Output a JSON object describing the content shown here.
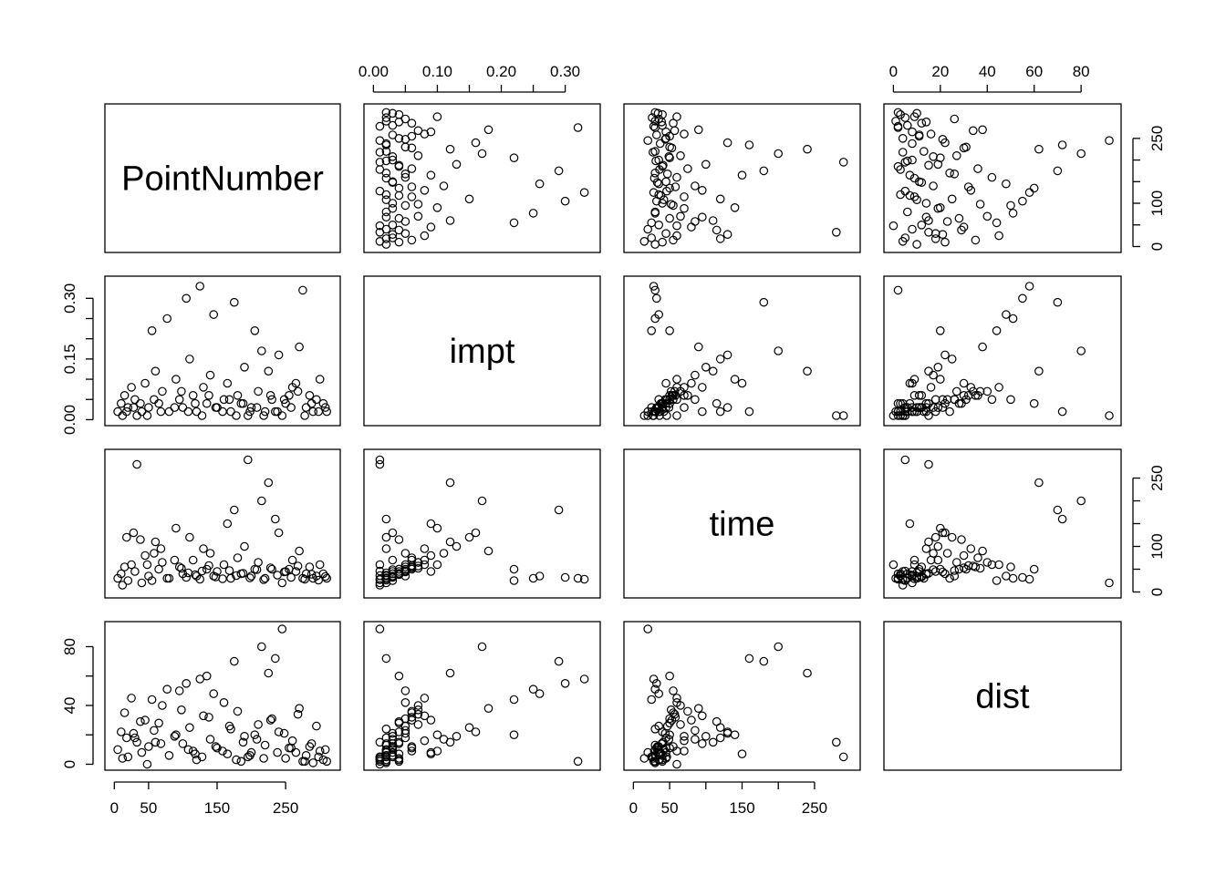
{
  "chart_data": {
    "type": "scatter",
    "variables": [
      {
        "name": "PointNumber",
        "range": [
          0,
          316
        ],
        "ticks": [
          0,
          50,
          150,
          250
        ],
        "tick_labels": [
          "0",
          "50",
          "150",
          "250"
        ],
        "right_ticks": [
          0,
          50,
          100,
          150,
          200,
          250
        ],
        "right_tick_labels": [
          "0",
          "",
          "100",
          "",
          "",
          "250"
        ]
      },
      {
        "name": "impt",
        "range": [
          0,
          0.34
        ],
        "ticks": [
          0,
          0.05,
          0.1,
          0.15,
          0.2,
          0.25,
          0.3
        ],
        "tick_labels": [
          "0.00",
          "",
          "0.10",
          "",
          "0.20",
          "",
          "0.30"
        ],
        "left_ticks": [
          0,
          0.05,
          0.1,
          0.15,
          0.2,
          0.25,
          0.3
        ],
        "left_tick_labels": [
          "0.00",
          "",
          "",
          "0.15",
          "",
          "",
          "0.30"
        ]
      },
      {
        "name": "time",
        "range": [
          0,
          300
        ],
        "ticks": [
          0,
          50,
          100,
          150,
          200,
          250
        ],
        "tick_labels": [
          "0",
          "50",
          "",
          "150",
          "",
          "250"
        ],
        "right_ticks": [
          0,
          50,
          100,
          150,
          200,
          250
        ],
        "right_tick_labels": [
          "0",
          "",
          "100",
          "",
          "",
          "250"
        ]
      },
      {
        "name": "dist",
        "range": [
          0,
          93
        ],
        "ticks": [
          0,
          20,
          40,
          60,
          80
        ],
        "tick_labels": [
          "0",
          "20",
          "40",
          "60",
          "80"
        ],
        "left_ticks": [
          0,
          20,
          40,
          60,
          80
        ],
        "left_tick_labels": [
          "0",
          "",
          "40",
          "",
          "80"
        ]
      }
    ],
    "points": [
      [
        5,
        0.02,
        30,
        10
      ],
      [
        10,
        0.04,
        40,
        22
      ],
      [
        15,
        0.06,
        55,
        35
      ],
      [
        20,
        0.03,
        25,
        5
      ],
      [
        25,
        0.08,
        60,
        45
      ],
      [
        30,
        0.05,
        45,
        18
      ],
      [
        40,
        0.02,
        20,
        8
      ],
      [
        45,
        0.09,
        80,
        30
      ],
      [
        50,
        0.03,
        35,
        12
      ],
      [
        60,
        0.12,
        110,
        15
      ],
      [
        65,
        0.04,
        50,
        28
      ],
      [
        70,
        0.07,
        65,
        40
      ],
      [
        80,
        0.02,
        30,
        6
      ],
      [
        90,
        0.1,
        140,
        20
      ],
      [
        95,
        0.05,
        55,
        50
      ],
      [
        100,
        0.03,
        40,
        14
      ],
      [
        110,
        0.15,
        120,
        25
      ],
      [
        115,
        0.06,
        70,
        9
      ],
      [
        120,
        0.02,
        35,
        3
      ],
      [
        130,
        0.08,
        95,
        33
      ],
      [
        135,
        0.04,
        50,
        60
      ],
      [
        140,
        0.11,
        85,
        17
      ],
      [
        150,
        0.03,
        45,
        11
      ],
      [
        160,
        0.05,
        60,
        42
      ],
      [
        165,
        0.09,
        150,
        7
      ],
      [
        170,
        0.02,
        30,
        24
      ],
      [
        180,
        0.06,
        75,
        36
      ],
      [
        185,
        0.04,
        40,
        2
      ],
      [
        190,
        0.13,
        100,
        19
      ],
      [
        200,
        0.03,
        35,
        8
      ],
      [
        210,
        0.07,
        65,
        27
      ],
      [
        220,
        0.02,
        30,
        13
      ],
      [
        230,
        0.05,
        50,
        31
      ],
      [
        240,
        0.16,
        130,
        22
      ],
      [
        250,
        0.04,
        45,
        4
      ],
      [
        260,
        0.08,
        70,
        16
      ],
      [
        270,
        0.18,
        90,
        38
      ],
      [
        280,
        0.03,
        40,
        6
      ],
      [
        285,
        0.06,
        55,
        12
      ],
      [
        290,
        0.02,
        30,
        1
      ],
      [
        295,
        0.05,
        35,
        26
      ],
      [
        300,
        0.1,
        60,
        9
      ],
      [
        305,
        0.04,
        40,
        3
      ],
      [
        310,
        0.02,
        30,
        2
      ],
      [
        12,
        0.01,
        15,
        4
      ],
      [
        33,
        0.01,
        280,
        15
      ],
      [
        55,
        0.22,
        25,
        44
      ],
      [
        77,
        0.25,
        30,
        51
      ],
      [
        105,
        0.3,
        32,
        55
      ],
      [
        125,
        0.33,
        28,
        58
      ],
      [
        145,
        0.26,
        35,
        48
      ],
      [
        175,
        0.29,
        180,
        70
      ],
      [
        195,
        0.01,
        290,
        5
      ],
      [
        205,
        0.22,
        50,
        20
      ],
      [
        215,
        0.17,
        200,
        80
      ],
      [
        225,
        0.12,
        240,
        62
      ],
      [
        235,
        0.02,
        160,
        72
      ],
      [
        245,
        0.01,
        20,
        92
      ],
      [
        255,
        0.06,
        50,
        11
      ],
      [
        265,
        0.09,
        45,
        8
      ],
      [
        275,
        0.32,
        30,
        2
      ],
      [
        18,
        0.02,
        120,
        18
      ],
      [
        28,
        0.03,
        130,
        21
      ],
      [
        38,
        0.04,
        115,
        29
      ],
      [
        48,
        0.01,
        60,
        0
      ],
      [
        58,
        0.05,
        85,
        23
      ],
      [
        68,
        0.02,
        95,
        14
      ],
      [
        88,
        0.03,
        70,
        19
      ],
      [
        98,
        0.07,
        52,
        37
      ],
      [
        108,
        0.02,
        42,
        10
      ],
      [
        118,
        0.04,
        38,
        7
      ],
      [
        128,
        0.01,
        46,
        5
      ],
      [
        138,
        0.06,
        58,
        32
      ],
      [
        148,
        0.03,
        33,
        12
      ],
      [
        158,
        0.02,
        29,
        9
      ],
      [
        168,
        0.05,
        47,
        26
      ],
      [
        178,
        0.01,
        36,
        3
      ],
      [
        188,
        0.04,
        41,
        15
      ],
      [
        198,
        0.02,
        31,
        6
      ],
      [
        208,
        0.03,
        49,
        17
      ],
      [
        218,
        0.01,
        27,
        4
      ],
      [
        228,
        0.06,
        53,
        30
      ],
      [
        238,
        0.02,
        37,
        8
      ],
      [
        248,
        0.05,
        44,
        21
      ],
      [
        258,
        0.03,
        32,
        11
      ],
      [
        268,
        0.07,
        57,
        34
      ],
      [
        278,
        0.01,
        28,
        2
      ],
      [
        288,
        0.04,
        39,
        14
      ],
      [
        298,
        0.02,
        26,
        5
      ],
      [
        308,
        0.03,
        34,
        10
      ]
    ]
  }
}
